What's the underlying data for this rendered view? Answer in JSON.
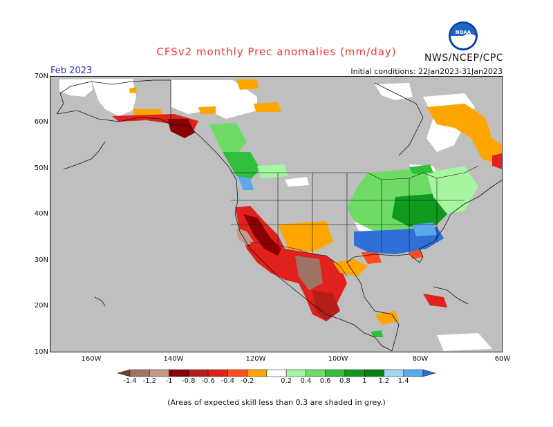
{
  "title": "CFSv2 monthly Prec anomalies (mm/day)",
  "agency": "NWS/NCEP/CPC",
  "logo_text": "NOAA",
  "valid_month": "Feb 2023",
  "initial_conditions": "Initial conditions: 22Jan2023-31Jan2023",
  "latitude_labels": [
    "70N",
    "60N",
    "50N",
    "40N",
    "30N",
    "20N",
    "10N"
  ],
  "longitude_labels": [
    "160W",
    "140W",
    "120W",
    "100W",
    "80W",
    "60W"
  ],
  "colorbar": {
    "labels": [
      "-1.4",
      "-1.2",
      "-1",
      "-0.8",
      "-0.6",
      "-0.4",
      "-0.2",
      "0.2",
      "0.4",
      "0.6",
      "0.8",
      "1",
      "1.2",
      "1.4"
    ],
    "colors": [
      "#6b4430",
      "#9f7465",
      "#c49a8c",
      "#8b0000",
      "#b41d18",
      "#e0211c",
      "#ff4d1f",
      "#ffa500",
      "#ffffff",
      "#a6f5a0",
      "#6edc64",
      "#2fbf3a",
      "#0e9a1e",
      "#0a7c14",
      "#a3d4f2",
      "#5aa8ee",
      "#2f6fd8"
    ]
  },
  "note": "(Areas of expected skill less than 0.3 are shaded in grey.)",
  "colors": {
    "grey_low_skill": "#bfbfbf",
    "title_red": "#e8352a",
    "valid_blue": "#2230c8"
  }
}
